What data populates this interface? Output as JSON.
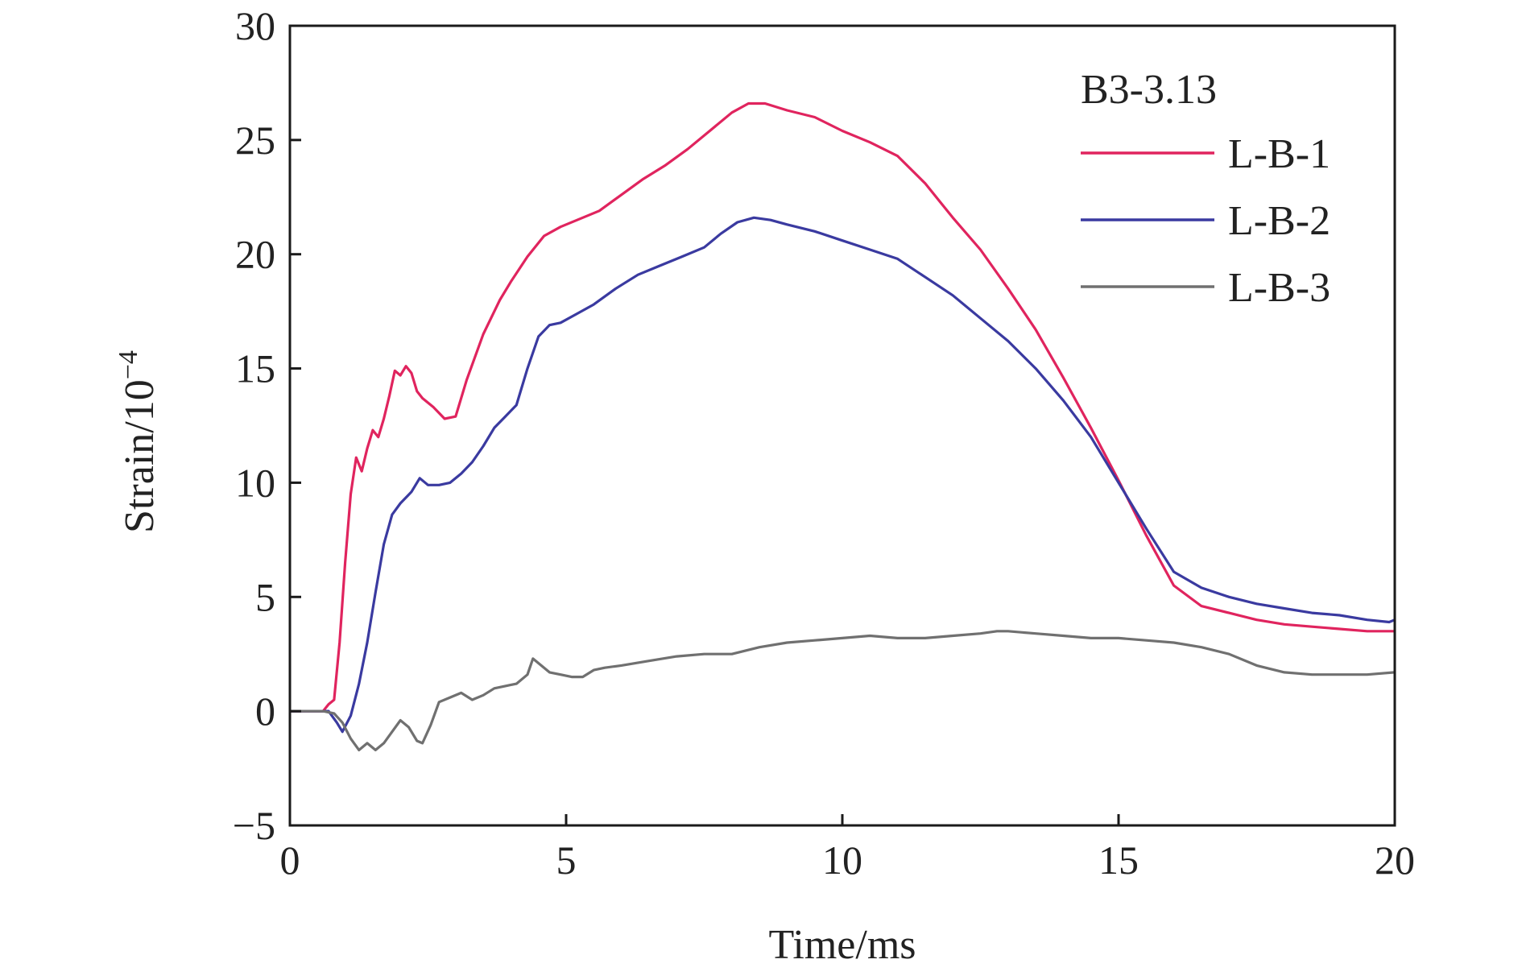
{
  "chart_data": {
    "type": "line",
    "title": "",
    "xlabel": "Time/ms",
    "ylabel_main": "Strain/10",
    "ylabel_exponent": "−4",
    "xlim": [
      0,
      20
    ],
    "ylim": [
      -5,
      30
    ],
    "x_ticks": [
      0,
      5,
      10,
      15,
      20
    ],
    "x_tick_labels": [
      "0",
      "5",
      "10",
      "15",
      "20"
    ],
    "y_ticks": [
      -5,
      0,
      5,
      10,
      15,
      20,
      25,
      30
    ],
    "y_tick_labels": [
      "−5",
      "0",
      "5",
      "10",
      "15",
      "20",
      "25",
      "30"
    ],
    "grid": false,
    "legend_title": "B3-3.13",
    "legend_position": "top-right",
    "series": [
      {
        "name": "L-B-1",
        "color": "#e0245e",
        "x": [
          0,
          0.6,
          0.7,
          0.8,
          0.9,
          1.0,
          1.1,
          1.2,
          1.3,
          1.4,
          1.5,
          1.6,
          1.7,
          1.8,
          1.9,
          2.0,
          2.1,
          2.2,
          2.3,
          2.4,
          2.6,
          2.8,
          3.0,
          3.2,
          3.5,
          3.8,
          4.0,
          4.3,
          4.6,
          4.9,
          5.2,
          5.6,
          6.0,
          6.4,
          6.8,
          7.2,
          7.6,
          8.0,
          8.3,
          8.6,
          9.0,
          9.5,
          10.0,
          10.5,
          11.0,
          11.5,
          12.0,
          12.5,
          13.0,
          13.5,
          14.0,
          14.5,
          15.0,
          15.5,
          16.0,
          16.5,
          17.0,
          17.5,
          18.0,
          18.5,
          19.0,
          19.5,
          20.0
        ],
        "y": [
          0,
          0,
          0.3,
          0.5,
          3.0,
          6.5,
          9.5,
          11.1,
          10.5,
          11.5,
          12.3,
          12.0,
          12.8,
          13.8,
          14.9,
          14.7,
          15.1,
          14.8,
          14.0,
          13.7,
          13.3,
          12.8,
          12.9,
          14.5,
          16.5,
          18.0,
          18.8,
          19.9,
          20.8,
          21.2,
          21.5,
          21.9,
          22.6,
          23.3,
          23.9,
          24.6,
          25.4,
          26.2,
          26.6,
          26.6,
          26.3,
          26.0,
          25.4,
          24.9,
          24.3,
          23.1,
          21.6,
          20.2,
          18.5,
          16.7,
          14.6,
          12.4,
          10.1,
          7.7,
          5.5,
          4.6,
          4.3,
          4.0,
          3.8,
          3.7,
          3.6,
          3.5,
          3.5
        ]
      },
      {
        "name": "L-B-2",
        "color": "#3a3aa0",
        "x": [
          0,
          0.7,
          0.85,
          0.95,
          1.1,
          1.25,
          1.4,
          1.55,
          1.7,
          1.85,
          2.0,
          2.2,
          2.35,
          2.5,
          2.7,
          2.9,
          3.1,
          3.3,
          3.5,
          3.7,
          3.9,
          4.1,
          4.3,
          4.5,
          4.7,
          4.9,
          5.2,
          5.5,
          5.9,
          6.3,
          6.7,
          7.1,
          7.5,
          7.8,
          8.1,
          8.4,
          8.7,
          9.0,
          9.5,
          10.0,
          10.5,
          11.0,
          11.5,
          12.0,
          12.5,
          13.0,
          13.5,
          14.0,
          14.5,
          15.0,
          15.5,
          16.0,
          16.5,
          17.0,
          17.5,
          18.0,
          18.5,
          19.0,
          19.5,
          19.9,
          20.0
        ],
        "y": [
          0,
          0,
          -0.5,
          -0.9,
          -0.2,
          1.2,
          3.0,
          5.2,
          7.3,
          8.6,
          9.1,
          9.6,
          10.2,
          9.9,
          9.9,
          10.0,
          10.4,
          10.9,
          11.6,
          12.4,
          12.9,
          13.4,
          15.0,
          16.4,
          16.9,
          17.0,
          17.4,
          17.8,
          18.5,
          19.1,
          19.5,
          19.9,
          20.3,
          20.9,
          21.4,
          21.6,
          21.5,
          21.3,
          21.0,
          20.6,
          20.2,
          19.8,
          19.0,
          18.2,
          17.2,
          16.2,
          15.0,
          13.6,
          12.0,
          10.0,
          8.0,
          6.1,
          5.4,
          5.0,
          4.7,
          4.5,
          4.3,
          4.2,
          4.0,
          3.9,
          4.0
        ]
      },
      {
        "name": "L-B-3",
        "color": "#707070",
        "x": [
          0,
          0.6,
          0.8,
          0.95,
          1.1,
          1.25,
          1.4,
          1.55,
          1.7,
          1.85,
          2.0,
          2.15,
          2.3,
          2.4,
          2.55,
          2.7,
          2.9,
          3.1,
          3.3,
          3.5,
          3.7,
          3.9,
          4.1,
          4.3,
          4.4,
          4.55,
          4.7,
          4.9,
          5.1,
          5.3,
          5.5,
          5.7,
          6.0,
          6.5,
          7.0,
          7.5,
          8.0,
          8.5,
          9.0,
          9.5,
          10.0,
          10.5,
          11.0,
          11.5,
          12.0,
          12.5,
          12.8,
          13.0,
          13.5,
          14.0,
          14.5,
          15.0,
          15.5,
          16.0,
          16.5,
          17.0,
          17.5,
          18.0,
          18.5,
          19.0,
          19.5,
          20.0
        ],
        "y": [
          0,
          0,
          -0.1,
          -0.5,
          -1.2,
          -1.7,
          -1.4,
          -1.7,
          -1.4,
          -0.9,
          -0.4,
          -0.7,
          -1.3,
          -1.4,
          -0.6,
          0.4,
          0.6,
          0.8,
          0.5,
          0.7,
          1.0,
          1.1,
          1.2,
          1.6,
          2.3,
          2.0,
          1.7,
          1.6,
          1.5,
          1.5,
          1.8,
          1.9,
          2.0,
          2.2,
          2.4,
          2.5,
          2.5,
          2.8,
          3.0,
          3.1,
          3.2,
          3.3,
          3.2,
          3.2,
          3.3,
          3.4,
          3.5,
          3.5,
          3.4,
          3.3,
          3.2,
          3.2,
          3.1,
          3.0,
          2.8,
          2.5,
          2.0,
          1.7,
          1.6,
          1.6,
          1.6,
          1.7
        ]
      }
    ]
  }
}
